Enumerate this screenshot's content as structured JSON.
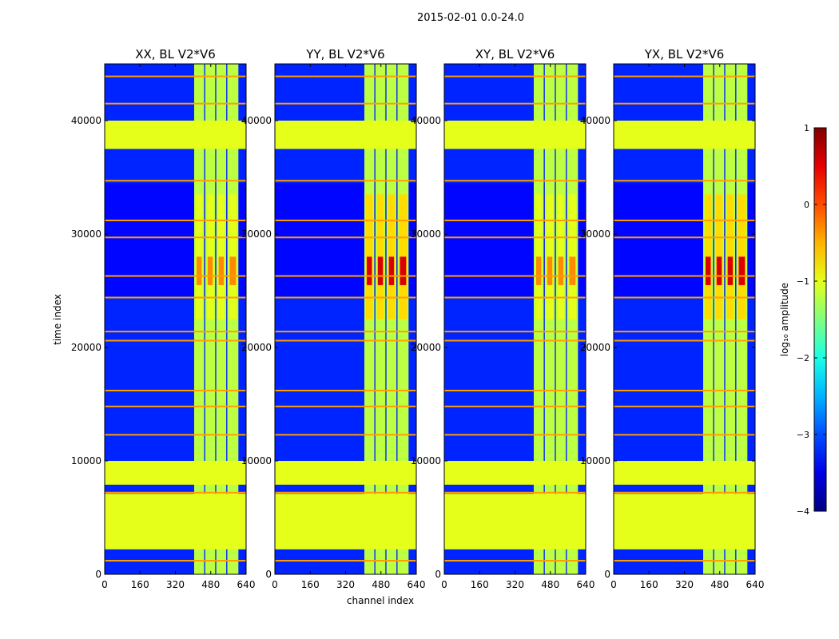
{
  "figure": {
    "suptitle": "2015-02-01 0.0-24.0",
    "xlabel": "channel index",
    "ylabel": "time index"
  },
  "chart_data": {
    "type": "heatmap",
    "x_range": [
      0,
      640
    ],
    "y_range": [
      0,
      45000
    ],
    "x_ticks": [
      0,
      160,
      320,
      480,
      640
    ],
    "y_ticks": [
      0,
      10000,
      20000,
      30000,
      40000
    ],
    "panels": [
      {
        "title": "XX, BL V2*V6",
        "strong_peak": false
      },
      {
        "title": "YY, BL V2*V6",
        "strong_peak": true
      },
      {
        "title": "XY, BL V2*V6",
        "strong_peak": false
      },
      {
        "title": "YX, BL V2*V6",
        "strong_peak": true
      }
    ],
    "flagged_time_ranges": [
      [
        2200,
        7100
      ],
      [
        7900,
        10000
      ],
      [
        37500,
        40000
      ]
    ],
    "rfi_channel_ranges": [
      [
        405,
        450
      ],
      [
        455,
        500
      ],
      [
        505,
        550
      ],
      [
        555,
        605
      ]
    ],
    "horizontal_stripes": [
      1200,
      7200,
      12300,
      14800,
      16200,
      20600,
      21400,
      24400,
      26300,
      29700,
      31200,
      34700,
      38100,
      41500,
      43900
    ],
    "colorbar": {
      "label": "log₁₀ amplitude",
      "range": [
        -4,
        1
      ],
      "ticks": [
        1,
        0,
        -1,
        -2,
        -3,
        -4
      ],
      "tick_labels": [
        "1",
        "0",
        "−1",
        "−2",
        "−3",
        "−4"
      ],
      "colormap": "jet"
    }
  }
}
